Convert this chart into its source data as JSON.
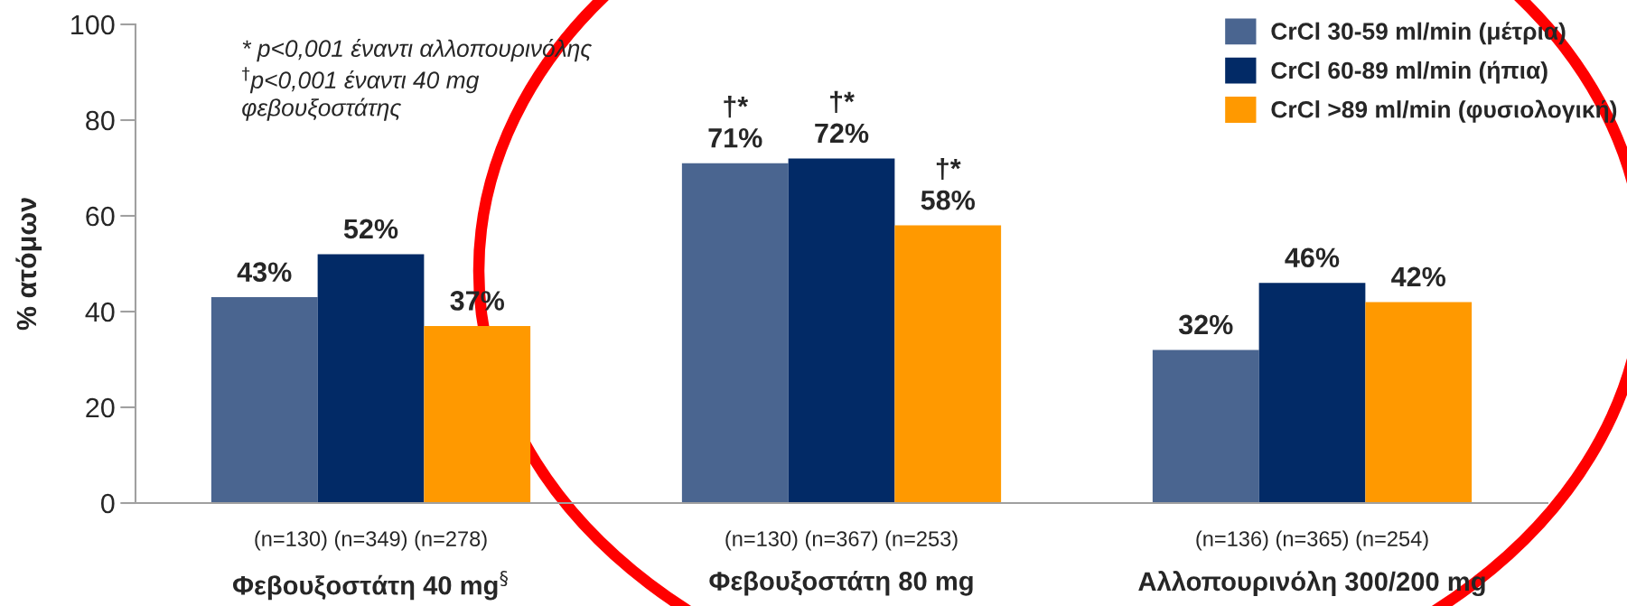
{
  "chart_data": {
    "type": "bar",
    "categories": [
      "(n=130) (n=349) (n=278)\nΦεβουξοστάτη 40 mg$^{§}$",
      "(n=130) (n=367) (n=253)\nΦεβουξοστάτη 80 mg",
      "(n=136) (n=365) (n=254)\nΑλλοπουρινόλη 300/200 mg"
    ],
    "series": [
      {
        "name": "CrCl 30-59 ml/min (μέτρια)",
        "color": "#4a6590",
        "values": [
          43,
          71,
          32
        ],
        "value_labels": [
          "43%",
          "†*\n71%",
          "32%"
        ]
      },
      {
        "name": "CrCl 60-89 ml/min (ήπια)",
        "color": "#022a66",
        "values": [
          52,
          72,
          46
        ],
        "value_labels": [
          "52%",
          "†*\n72%",
          "46%"
        ]
      },
      {
        "name": "CrCl >89 ml/min (φυσιολογική)",
        "color": "#ff9900",
        "values": [
          37,
          58,
          42
        ],
        "value_labels": [
          "37%",
          "†*\n58%",
          "42%"
        ]
      }
    ],
    "ylabel": "% ατόμων",
    "ylim": [
      0,
      100
    ],
    "yticks": [
      0,
      20,
      40,
      60,
      80,
      100
    ],
    "legend": "top right",
    "grid": false,
    "annotations": [
      "* p<0,001 έναντι αλλοπουρινόλης\n$^{†}$p<0,001 έναντι 40 mg\nφεβουξοστάτης"
    ]
  }
}
